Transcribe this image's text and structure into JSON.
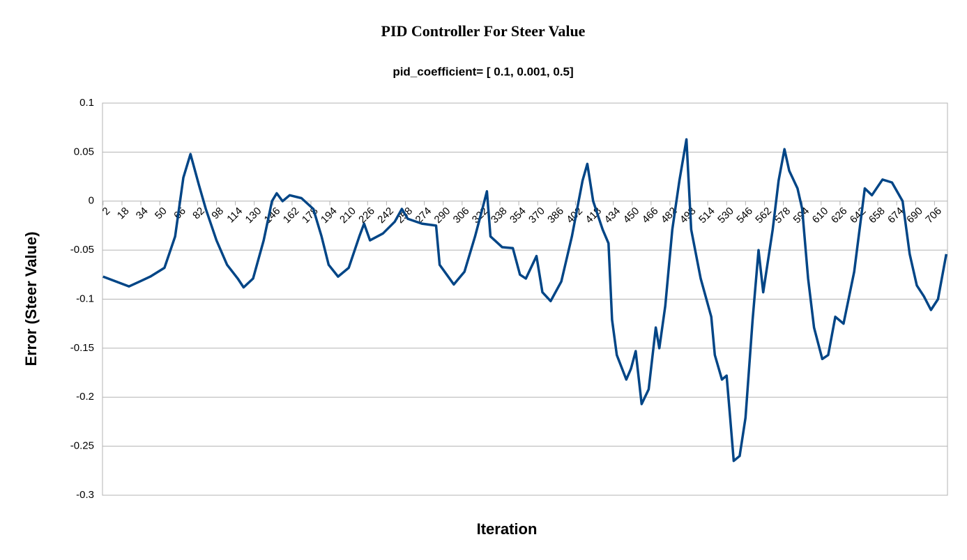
{
  "chart_data": {
    "type": "line",
    "title": "PID Controller For Steer Value",
    "subtitle": "pid_coefficient= [ 0.1, 0.001, 0.5]",
    "x_label": "Iteration",
    "y_label": "Error (Steer Value)",
    "xlim": [
      1.5,
      717
    ],
    "xticks": [
      2,
      18,
      34,
      50,
      66,
      82,
      98,
      114,
      130,
      146,
      162,
      178,
      194,
      210,
      226,
      242,
      258,
      274,
      290,
      306,
      322,
      338,
      354,
      370,
      386,
      402,
      418,
      434,
      450,
      466,
      482,
      498,
      514,
      530,
      546,
      562,
      578,
      594,
      610,
      626,
      642,
      658,
      674,
      690,
      706
    ],
    "ylim": [
      -0.3,
      0.1
    ],
    "yticks": [
      0.1,
      0.05,
      0,
      -0.05,
      -0.1,
      -0.15,
      -0.2,
      -0.25,
      -0.3
    ],
    "grid": true,
    "series": [
      {
        "name": "Error (Steer Value)",
        "color": "#004586",
        "x": [
          2,
          24,
          33,
          42,
          54,
          63,
          70,
          76,
          83,
          89,
          98,
          107,
          116,
          121,
          129,
          138,
          145,
          149,
          154,
          160,
          170,
          180,
          187,
          193,
          201,
          210,
          219,
          223,
          228,
          239,
          249,
          255,
          260,
          272,
          284,
          287,
          293,
          299,
          308,
          317,
          324,
          327,
          330,
          340,
          349,
          355,
          360,
          369,
          374,
          381,
          390,
          399,
          408,
          412,
          417,
          425,
          430,
          433,
          437,
          445,
          449,
          453,
          458,
          464,
          470,
          473,
          478,
          484,
          490,
          496,
          500,
          508,
          517,
          520,
          526,
          530,
          533,
          536,
          541,
          546,
          552,
          557,
          561,
          569,
          574,
          579,
          583,
          590,
          594,
          599,
          604,
          611,
          616,
          622,
          629,
          638,
          647,
          653,
          662,
          670,
          679,
          685,
          691,
          697,
          703,
          709,
          716
        ],
        "values": [
          -0.077,
          -0.087,
          -0.082,
          -0.077,
          -0.068,
          -0.036,
          0.024,
          0.048,
          0.017,
          -0.008,
          -0.04,
          -0.065,
          -0.079,
          -0.088,
          -0.079,
          -0.04,
          0,
          0.008,
          0,
          0.006,
          0.003,
          -0.008,
          -0.036,
          -0.065,
          -0.077,
          -0.068,
          -0.036,
          -0.023,
          -0.04,
          -0.033,
          -0.021,
          -0.008,
          -0.018,
          -0.023,
          -0.025,
          -0.065,
          -0.075,
          -0.085,
          -0.072,
          -0.036,
          -0.004,
          0.01,
          -0.036,
          -0.047,
          -0.048,
          -0.075,
          -0.079,
          -0.056,
          -0.093,
          -0.102,
          -0.082,
          -0.036,
          0.021,
          0.038,
          0,
          -0.029,
          -0.043,
          -0.121,
          -0.157,
          -0.182,
          -0.171,
          -0.153,
          -0.207,
          -0.192,
          -0.129,
          -0.15,
          -0.107,
          -0.029,
          0.021,
          0.063,
          -0.029,
          -0.079,
          -0.118,
          -0.157,
          -0.182,
          -0.178,
          -0.221,
          -0.265,
          -0.26,
          -0.221,
          -0.121,
          -0.05,
          -0.093,
          -0.029,
          0.021,
          0.053,
          0.031,
          0.013,
          -0.008,
          -0.079,
          -0.129,
          -0.161,
          -0.157,
          -0.118,
          -0.125,
          -0.072,
          0.013,
          0.006,
          0.022,
          0.019,
          0,
          -0.054,
          -0.086,
          -0.097,
          -0.111,
          -0.1,
          -0.054
        ]
      }
    ]
  }
}
